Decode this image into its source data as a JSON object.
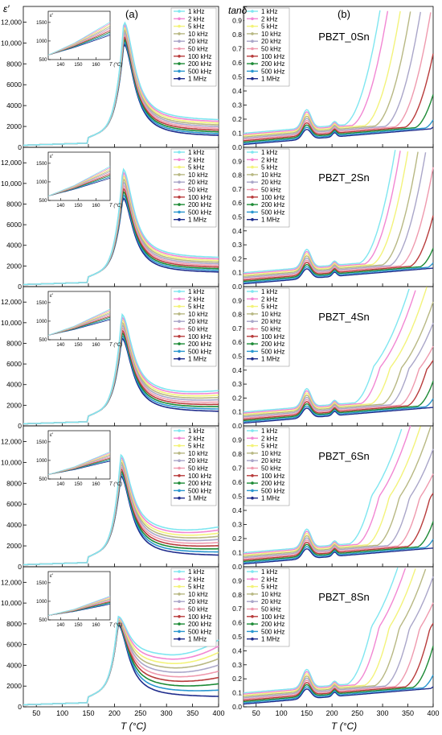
{
  "panel_labels": {
    "left": "(a)",
    "right": "(b)"
  },
  "left_ylabel": "ε′",
  "right_ylabel": "tanδ",
  "xlabel_text": "T (°C)",
  "inset_axis_label": "T (°C)",
  "inset_ylabel": "ε′",
  "colors": [
    "#7fe6f0",
    "#f287d3",
    "#f3f37a",
    "#b8b883",
    "#aaa6c9",
    "#ef9aae",
    "#b83b3b",
    "#1c8a35",
    "#2a97cf",
    "#1f2c8c"
  ],
  "chart_data": {
    "type": "line",
    "frequencies": [
      "1 kHz",
      "2 kHz",
      "5 kHz",
      "10 kHz",
      "20 kHz",
      "50 kHz",
      "100 kHz",
      "200 kHz",
      "500 kHz",
      "1 MHz"
    ],
    "samples": [
      "PBZT_0Sn",
      "PBZT_2Sn",
      "PBZT_4Sn",
      "PBZT_6Sn",
      "PBZT_8Sn"
    ],
    "permittivity": {
      "xlim": [
        25,
        400
      ],
      "x_ticks": [
        50,
        100,
        150,
        200,
        250,
        300,
        350,
        400
      ],
      "ylim": [
        0,
        13500
      ],
      "y_ticks": [
        0,
        2000,
        4000,
        6000,
        8000,
        10000,
        12000
      ],
      "y_tick_labels": [
        "0",
        "2000",
        "4000",
        "6000",
        "8000",
        "10,000",
        "12,000"
      ],
      "x_tick_labels": [
        "50",
        "100",
        "150",
        "200",
        "250",
        "300",
        "350",
        "400"
      ],
      "inset": {
        "xlim": [
          133,
          168
        ],
        "x_ticks": [
          140,
          150,
          160
        ],
        "x_tick_labels": [
          "140",
          "150",
          "160"
        ],
        "ylim": [
          500,
          1800
        ],
        "y_ticks": [
          500,
          1000,
          1500
        ],
        "y_tick_labels": [
          "500",
          "1000",
          "1500"
        ]
      },
      "panels": [
        {
          "sample": "PBZT_0Sn",
          "tc": 218,
          "peak_lo": 9900,
          "peak_hi": 12000,
          "hi_lo": 1000,
          "hi_hi": 2500,
          "rise": 0
        },
        {
          "sample": "PBZT_2Sn",
          "tc": 216,
          "peak_lo": 8600,
          "peak_hi": 11400,
          "hi_lo": 1300,
          "hi_hi": 2700,
          "rise": 0
        },
        {
          "sample": "PBZT_4Sn",
          "tc": 214,
          "peak_lo": 8500,
          "peak_hi": 10800,
          "hi_lo": 1300,
          "hi_hi": 3000,
          "rise": 300
        },
        {
          "sample": "PBZT_6Sn",
          "tc": 212,
          "peak_lo": 8700,
          "peak_hi": 10700,
          "hi_lo": 1000,
          "hi_hi": 3200,
          "rise": 500
        },
        {
          "sample": "PBZT_8Sn",
          "tc": 207,
          "peak_lo": 7900,
          "peak_hi": 8700,
          "hi_lo": 900,
          "hi_hi": 4800,
          "rise": 1600
        }
      ]
    },
    "loss_tangent": {
      "xlim": [
        25,
        400
      ],
      "x_ticks": [
        50,
        100,
        150,
        200,
        250,
        300,
        350,
        400
      ],
      "x_tick_labels": [
        "50",
        "100",
        "150",
        "200",
        "250",
        "300",
        "350",
        "400"
      ],
      "ylim": [
        0,
        1.0
      ],
      "y_ticks": [
        0,
        0.1,
        0.2,
        0.3,
        0.4,
        0.5,
        0.6,
        0.7,
        0.8,
        0.9
      ],
      "y_tick_labels": [
        "0.0",
        "0.1",
        "0.2",
        "0.3",
        "0.4",
        "0.5",
        "0.6",
        "0.7",
        "0.8",
        "0.9"
      ],
      "panels": [
        {
          "sample": "PBZT_0Sn",
          "onset": [
            225,
            240,
            265,
            285,
            305,
            325,
            345,
            365,
            385,
            395
          ],
          "plateau": 0
        },
        {
          "sample": "PBZT_2Sn",
          "onset": [
            255,
            265,
            280,
            300,
            315,
            335,
            355,
            375,
            390,
            400
          ],
          "plateau": 0
        },
        {
          "sample": "PBZT_4Sn",
          "onset": [
            245,
            258,
            278,
            300,
            315,
            335,
            350,
            370,
            385,
            400
          ],
          "plateau": 0.25
        },
        {
          "sample": "PBZT_6Sn",
          "onset": [
            235,
            250,
            270,
            290,
            310,
            330,
            350,
            370,
            385,
            400
          ],
          "plateau": 0.33
        },
        {
          "sample": "PBZT_8Sn",
          "onset": [
            230,
            245,
            265,
            285,
            305,
            325,
            345,
            360,
            380,
            395
          ],
          "plateau": 0.4
        }
      ]
    }
  }
}
